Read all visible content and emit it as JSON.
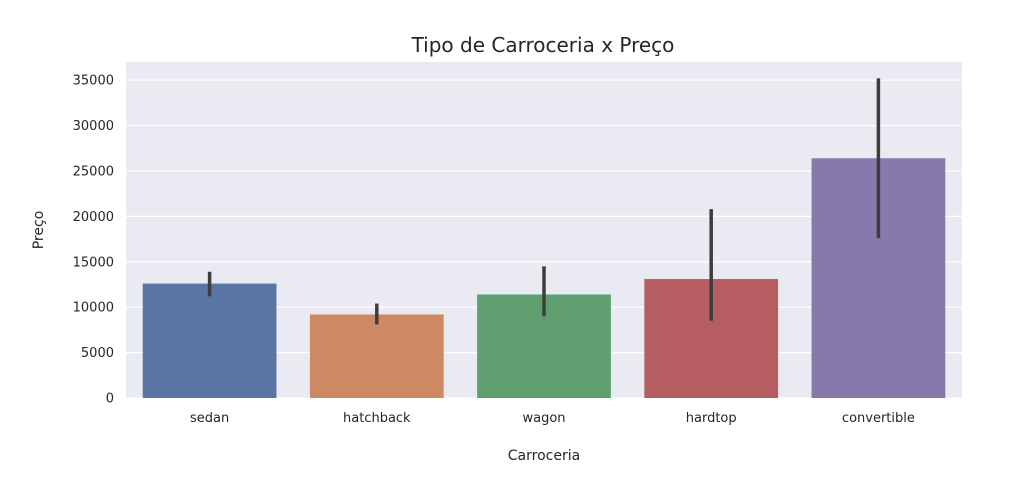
{
  "chart_data": {
    "type": "bar",
    "title": "Tipo de Carroceria x Preço",
    "xlabel": "Carroceria",
    "ylabel": "Preço",
    "categories": [
      "sedan",
      "hatchback",
      "wagon",
      "hardtop",
      "convertible"
    ],
    "values": [
      12600,
      9200,
      11400,
      13100,
      26400
    ],
    "error_low": [
      11200,
      8100,
      9000,
      8500,
      17600
    ],
    "error_high": [
      13900,
      10400,
      14500,
      20800,
      35200
    ],
    "colors": [
      "#5875A4",
      "#CC8963",
      "#5F9E6E",
      "#B55D60",
      "#857AAB"
    ],
    "ylim": [
      0,
      37000
    ],
    "yticks": [
      0,
      5000,
      10000,
      15000,
      20000,
      25000,
      30000,
      35000
    ],
    "grid": true,
    "background": "#EAEAF2",
    "errorbar_color": "#3d3d3d"
  }
}
